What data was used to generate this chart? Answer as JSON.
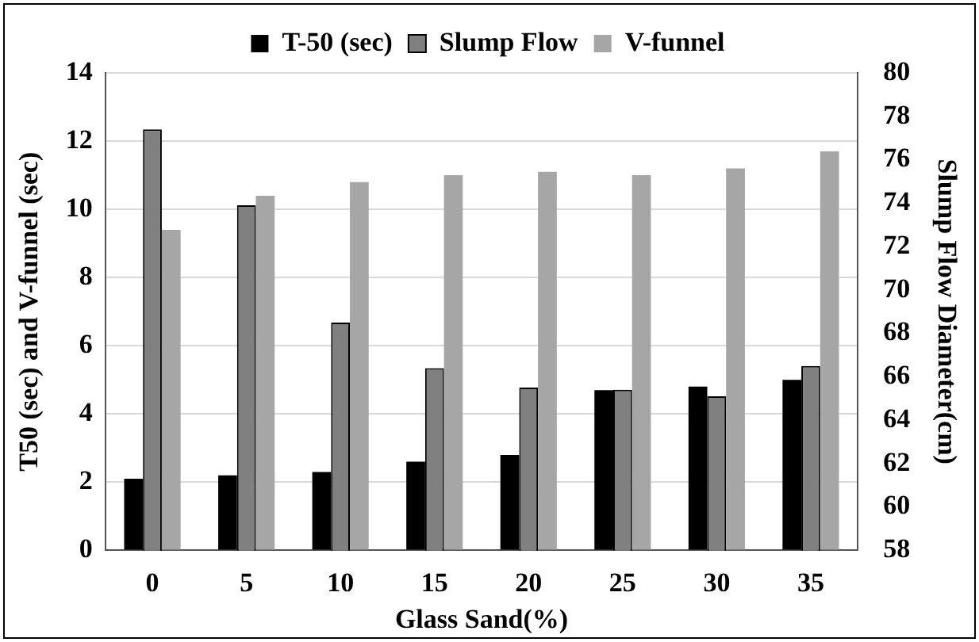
{
  "chart_data": {
    "type": "bar",
    "xlabel": "Glass Sand(%)",
    "ylabel": "T50 (sec) and V-funnel (sec)",
    "y2label": "Slump Flow Diameter(cm)",
    "categories": [
      "0",
      "5",
      "10",
      "15",
      "20",
      "25",
      "30",
      "35"
    ],
    "series": [
      {
        "name": "T-50 (sec)",
        "color": "#000000",
        "values": [
          2.1,
          2.2,
          2.3,
          2.6,
          2.8,
          4.7,
          4.8,
          5.0
        ]
      },
      {
        "name": "Slump Flow",
        "color": "#808080",
        "axis": "y2",
        "values": [
          77.4,
          73.9,
          68.5,
          66.4,
          65.5,
          65.4,
          65.1,
          66.5
        ]
      },
      {
        "name": "V-funnel",
        "color": "#a6a6a6",
        "values": [
          9.4,
          10.4,
          10.8,
          11.0,
          11.1,
          11.0,
          11.2,
          11.7
        ]
      }
    ],
    "ylim": [
      0,
      14
    ],
    "yticks": [
      0,
      2,
      4,
      6,
      8,
      10,
      12,
      14
    ],
    "y2lim": [
      58,
      80
    ],
    "y2ticks": [
      58,
      60,
      62,
      64,
      66,
      68,
      70,
      72,
      74,
      76,
      78,
      80
    ],
    "grid": "y",
    "legend": "top"
  }
}
